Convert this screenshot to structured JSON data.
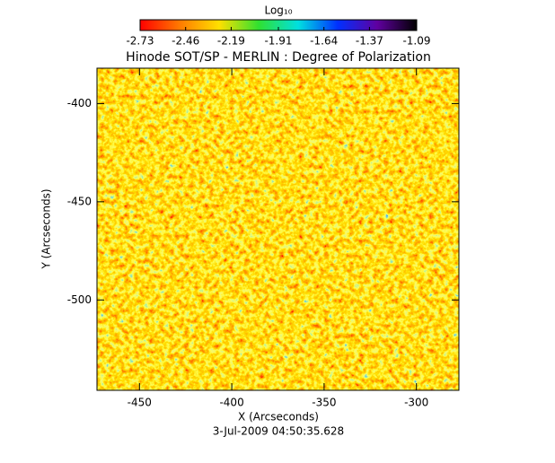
{
  "chart_data": {
    "type": "heatmap",
    "title": "Hinode SOT/SP - MERLIN : Degree of Polarization",
    "xlabel": "X (Arcseconds)",
    "ylabel": "Y (Arcseconds)",
    "footer": "3-Jul-2009 04:50:35.628",
    "xlim": [
      -473,
      -277
    ],
    "xticks": [
      -450,
      -400,
      -350,
      -300
    ],
    "ylim": [
      -546,
      -382
    ],
    "yticks": [
      -500,
      -450,
      -400
    ],
    "colorbar": {
      "label": "Log₁₀",
      "clim": [
        -2.73,
        -1.09
      ],
      "ticks": [
        -2.73,
        -2.46,
        -2.19,
        -1.91,
        -1.64,
        -1.37,
        -1.09
      ],
      "colormap": [
        "#ff0000",
        "#ff7a00",
        "#ffe000",
        "#30e030",
        "#00e0e0",
        "#0030ff",
        "#6000a0",
        "#000000"
      ]
    }
  }
}
